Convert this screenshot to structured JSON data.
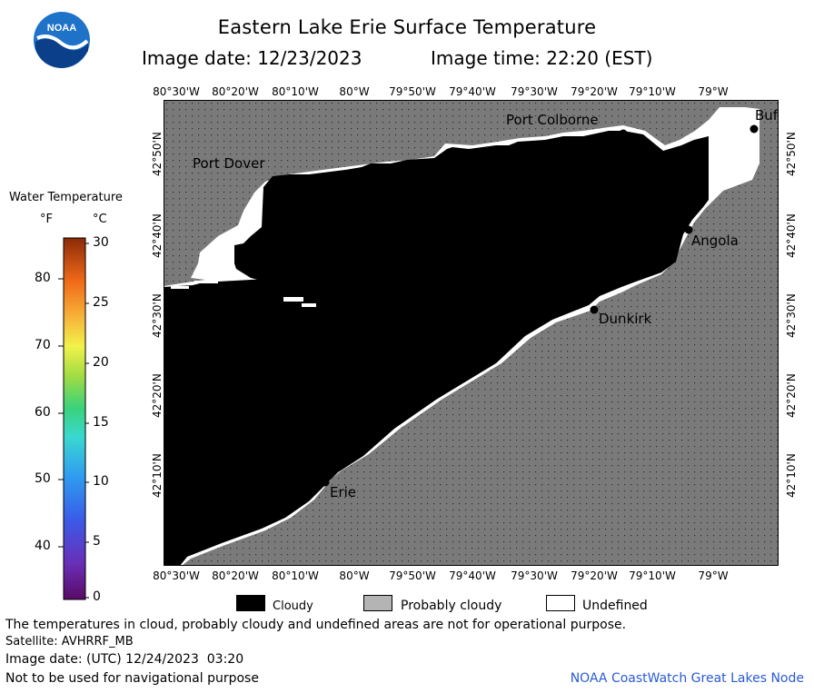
{
  "header": {
    "title": "Eastern Lake Erie Surface Temperature",
    "image_date": "Image date: 12/23/2023",
    "image_time": "Image time: 22:20 (EST)"
  },
  "logo": {
    "text": "NOAA",
    "icon": "noaa-logo-icon"
  },
  "map": {
    "lon_labels": [
      "80°30'W",
      "80°20'W",
      "80°10'W",
      "80°W",
      "79°50'W",
      "79°40'W",
      "79°30'W",
      "79°20'W",
      "79°10'W",
      "79°W"
    ],
    "lat_labels": [
      "42°50'N",
      "42°40'N",
      "42°30'N",
      "42°20'N",
      "42°10'N"
    ],
    "places": {
      "port_colborne": "Port Colborne",
      "buffalo": "Buf",
      "port_dover": "Port Dover",
      "angola": "Angola",
      "dunkirk": "Dunkirk",
      "erie": "Erie"
    },
    "colors": {
      "land": "#7a7a7a",
      "cloudy": "#000000",
      "undefined": "#ffffff",
      "probably_cloudy": "#b4b4b4"
    }
  },
  "color_scale": {
    "title": "Water Temperature",
    "unit_f": "°F",
    "unit_c": "°C",
    "f_ticks": [
      "80",
      "70",
      "60",
      "50",
      "40"
    ],
    "c_ticks": [
      "30",
      "25",
      "20",
      "15",
      "10",
      "5",
      "0"
    ]
  },
  "legend": {
    "cloudy": "Cloudy",
    "probably_cloudy": "Probably cloudy",
    "undefined": "Undefined"
  },
  "footer": {
    "disclaimer": "The temperatures in cloud, probably cloudy and undefined areas are not for operational purpose.",
    "satellite": "Satellite: AVHRRF_MB",
    "image_date_utc": "Image date: (UTC) 12/24/2023  03:20",
    "nav_warning": "Not to be used for navigational purpose",
    "credit": "NOAA CoastWatch Great Lakes Node"
  }
}
